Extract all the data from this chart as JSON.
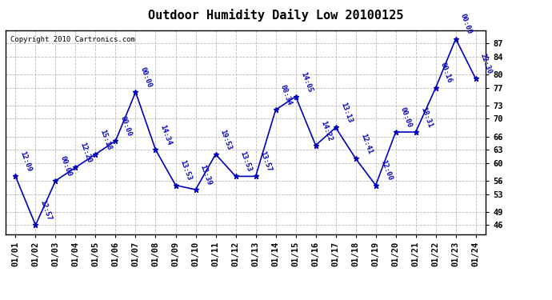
{
  "title": "Outdoor Humidity Daily Low 20100125",
  "copyright": "Copyright 2010 Cartronics.com",
  "x_labels": [
    "01/01",
    "01/02",
    "01/03",
    "01/04",
    "01/05",
    "01/06",
    "01/07",
    "01/08",
    "01/09",
    "01/10",
    "01/11",
    "01/12",
    "01/13",
    "01/14",
    "01/15",
    "01/16",
    "01/17",
    "01/18",
    "01/19",
    "01/20",
    "01/21",
    "01/22",
    "01/23",
    "01/24"
  ],
  "y_values": [
    57,
    46,
    56,
    59,
    62,
    65,
    76,
    63,
    55,
    54,
    62,
    57,
    57,
    72,
    75,
    64,
    68,
    61,
    55,
    67,
    67,
    77,
    88,
    79
  ],
  "time_labels": [
    "12:09",
    "12:57",
    "00:00",
    "12:20",
    "15:18",
    "00:00",
    "00:00",
    "14:34",
    "13:53",
    "13:39",
    "19:53",
    "13:53",
    "13:57",
    "08:34",
    "14:05",
    "14:22",
    "13:13",
    "12:41",
    "12:00",
    "00:00",
    "18:31",
    "00:16",
    "00:00",
    "22:30"
  ],
  "ylim": [
    44,
    90
  ],
  "yticks": [
    46,
    49,
    53,
    56,
    60,
    63,
    66,
    70,
    73,
    77,
    80,
    84,
    87
  ],
  "line_color": "#0000bb",
  "marker_color": "#0000bb",
  "background_color": "#ffffff",
  "grid_color": "#bbbbbb",
  "title_fontsize": 11,
  "label_fontsize": 6.5,
  "tick_fontsize": 7.5,
  "copyright_fontsize": 6.5
}
